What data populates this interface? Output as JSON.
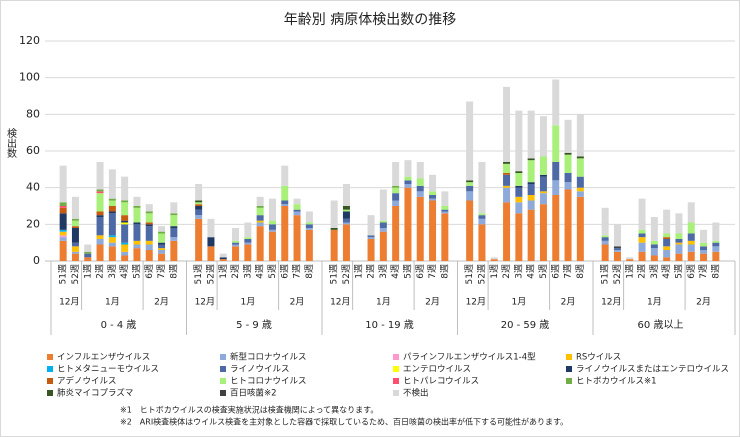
{
  "chart_data": {
    "type": "stacked_bar",
    "title": "年齢別 病原体検出数の推移",
    "y_label": "検出数",
    "ylim": [
      0,
      120
    ],
    "yticks": [
      0,
      20,
      40,
      60,
      80,
      100,
      120
    ],
    "grid": true,
    "groups": [
      {
        "label": "0 - 4 歳",
        "months": [
          {
            "label": "12月",
            "weeks": [
              "51週",
              "52週"
            ]
          },
          {
            "label": "1月",
            "weeks": [
              "1週",
              "2週",
              "3週",
              "4週",
              "5週"
            ]
          },
          {
            "label": "2月",
            "weeks": [
              "6週",
              "7週",
              "8週"
            ]
          }
        ]
      },
      {
        "label": "5 - 9 歳",
        "months": [
          {
            "label": "12月",
            "weeks": [
              "51週",
              "52週"
            ]
          },
          {
            "label": "1月",
            "weeks": [
              "1週",
              "2週",
              "3週",
              "4週",
              "5週"
            ]
          },
          {
            "label": "2月",
            "weeks": [
              "6週",
              "7週",
              "8週"
            ]
          }
        ]
      },
      {
        "label": "10 - 19 歳",
        "months": [
          {
            "label": "12月",
            "weeks": [
              "51週",
              "52週"
            ]
          },
          {
            "label": "1月",
            "weeks": [
              "1週",
              "2週",
              "3週",
              "4週",
              "5週"
            ]
          },
          {
            "label": "2月",
            "weeks": [
              "6週",
              "7週",
              "8週"
            ]
          }
        ]
      },
      {
        "label": "20 - 59 歳",
        "months": [
          {
            "label": "12月",
            "weeks": [
              "51週",
              "52週"
            ]
          },
          {
            "label": "1月",
            "weeks": [
              "1週",
              "2週",
              "3週",
              "4週",
              "5週"
            ]
          },
          {
            "label": "2月",
            "weeks": [
              "6週",
              "7週",
              "8週"
            ]
          }
        ]
      },
      {
        "label": "60 歳以上",
        "months": [
          {
            "label": "12月",
            "weeks": [
              "51週",
              "52週"
            ]
          },
          {
            "label": "1月",
            "weeks": [
              "1週",
              "2週",
              "3週",
              "4週",
              "5週"
            ]
          },
          {
            "label": "2月",
            "weeks": [
              "6週",
              "7週",
              "8週"
            ]
          }
        ]
      }
    ],
    "series": [
      {
        "name": "インフルエンザウイルス",
        "color": "#ed7d31",
        "values": [
          11,
          4,
          2,
          9,
          8,
          3,
          7,
          6,
          4,
          11,
          23,
          8,
          1,
          8,
          9,
          19,
          16,
          30,
          25,
          17,
          17,
          20,
          0,
          12,
          16,
          30,
          40,
          35,
          33,
          26,
          33,
          20,
          1,
          32,
          26,
          28,
          31,
          36,
          39,
          35,
          9,
          5,
          1,
          5,
          3,
          2,
          4,
          5,
          4,
          5
        ]
      },
      {
        "name": "新型コロナウイルス",
        "color": "#8eaadb",
        "values": [
          2,
          1,
          0,
          3,
          2,
          2,
          2,
          3,
          2,
          2,
          2,
          0,
          0,
          1,
          1,
          2,
          1,
          1,
          2,
          1,
          0,
          1,
          0,
          1,
          2,
          3,
          2,
          3,
          1,
          1,
          5,
          3,
          0,
          8,
          6,
          5,
          6,
          8,
          4,
          3,
          2,
          1,
          0,
          5,
          4,
          4,
          5,
          4,
          2,
          3
        ]
      },
      {
        "name": "パラインフルエンザウイルス1-4型",
        "color": "#ff99cc",
        "values": [
          1,
          0,
          0,
          0,
          0,
          0,
          0,
          0,
          0,
          0,
          0,
          0,
          0,
          0,
          0,
          0,
          0,
          0,
          0,
          0,
          0,
          0,
          0,
          0,
          0,
          0,
          0,
          0,
          0,
          0,
          0,
          0,
          0,
          0,
          0,
          0,
          0,
          0,
          0,
          0,
          0,
          0,
          0,
          0,
          0,
          0,
          0,
          0,
          0,
          0
        ]
      },
      {
        "name": "RSウイルス",
        "color": "#ffc000",
        "values": [
          2,
          3,
          0,
          2,
          3,
          4,
          2,
          2,
          1,
          0,
          0,
          0,
          0,
          0,
          0,
          1,
          0,
          0,
          0,
          0,
          0,
          0,
          0,
          0,
          0,
          0,
          0,
          0,
          0,
          0,
          0,
          0,
          0,
          1,
          3,
          3,
          1,
          0,
          0,
          2,
          0,
          0,
          0,
          3,
          0,
          2,
          1,
          2,
          0,
          0
        ]
      },
      {
        "name": "ヒトメタニューモウイルス",
        "color": "#00b0f0",
        "values": [
          1,
          0,
          0,
          0,
          1,
          1,
          0,
          0,
          0,
          0,
          0,
          0,
          0,
          0,
          0,
          0,
          0,
          0,
          0,
          0,
          0,
          0,
          0,
          0,
          0,
          0,
          0,
          0,
          0,
          0,
          0,
          0,
          0,
          0,
          0,
          0,
          0,
          0,
          0,
          0,
          0,
          0,
          0,
          0,
          0,
          0,
          0,
          0,
          0,
          0
        ]
      },
      {
        "name": "ライノウイルス",
        "color": "#4e6aa6",
        "values": [
          0,
          2,
          2,
          10,
          12,
          10,
          9,
          8,
          2,
          5,
          3,
          0,
          0,
          1,
          2,
          3,
          3,
          2,
          1,
          2,
          0,
          2,
          0,
          1,
          3,
          4,
          2,
          3,
          2,
          1,
          3,
          2,
          0,
          6,
          5,
          6,
          8,
          10,
          5,
          6,
          2,
          1,
          0,
          2,
          2,
          4,
          2,
          4,
          2,
          2
        ]
      },
      {
        "name": "エンテロウイルス",
        "color": "#ffff00",
        "values": [
          0,
          0,
          0,
          0,
          0,
          1,
          0,
          0,
          0,
          0,
          0,
          0,
          0,
          0,
          0,
          0,
          0,
          0,
          0,
          0,
          0,
          0,
          0,
          0,
          0,
          0,
          0,
          0,
          0,
          0,
          0,
          0,
          0,
          0,
          0,
          0,
          0,
          0,
          0,
          0,
          0,
          0,
          0,
          0,
          0,
          0,
          0,
          0,
          0,
          0
        ]
      },
      {
        "name": "ライノウイルスまたはエンテロウイルス",
        "color": "#1f3864",
        "values": [
          9,
          8,
          0,
          1,
          1,
          1,
          1,
          1,
          1,
          1,
          2,
          5,
          1,
          0,
          0,
          0,
          0,
          0,
          0,
          0,
          0,
          4,
          0,
          0,
          0,
          0,
          0,
          0,
          0,
          0,
          0,
          0,
          0,
          0,
          1,
          1,
          1,
          0,
          0,
          0,
          0,
          0,
          0,
          0,
          0,
          0,
          0,
          0,
          0,
          0
        ]
      },
      {
        "name": "アデノウイルス",
        "color": "#c55a11",
        "values": [
          3,
          1,
          0,
          2,
          3,
          3,
          0,
          1,
          0,
          0,
          1,
          0,
          0,
          0,
          0,
          0,
          0,
          0,
          0,
          0,
          0,
          0,
          0,
          0,
          0,
          0,
          0,
          0,
          0,
          0,
          0,
          0,
          0,
          1,
          0,
          0,
          0,
          0,
          0,
          0,
          0,
          0,
          0,
          0,
          0,
          1,
          0,
          0,
          0,
          0
        ]
      },
      {
        "name": "ヒトコロナウイルス",
        "color": "#a9f07a",
        "values": [
          0,
          3,
          0,
          10,
          3,
          7,
          8,
          5,
          5,
          6,
          1,
          0,
          0,
          1,
          1,
          4,
          2,
          8,
          3,
          1,
          0,
          1,
          0,
          0,
          1,
          3,
          2,
          4,
          2,
          2,
          2,
          1,
          0,
          5,
          7,
          12,
          10,
          20,
          10,
          10,
          1,
          0,
          0,
          2,
          2,
          2,
          3,
          6,
          2,
          1
        ]
      },
      {
        "name": "ヒトパレコウイルス",
        "color": "#ff4f6d",
        "values": [
          1,
          0,
          0,
          1,
          0,
          0,
          0,
          0,
          0,
          0,
          0,
          0,
          0,
          0,
          0,
          0,
          0,
          0,
          0,
          0,
          0,
          0,
          0,
          0,
          0,
          0,
          0,
          0,
          0,
          0,
          0,
          0,
          0,
          0,
          0,
          0,
          0,
          0,
          0,
          0,
          0,
          0,
          0,
          0,
          0,
          0,
          0,
          0,
          0,
          0
        ]
      },
      {
        "name": "ヒトボカウイルス※1",
        "color": "#70ad47",
        "values": [
          2,
          1,
          1,
          1,
          1,
          1,
          1,
          1,
          1,
          1,
          0,
          0,
          0,
          0,
          0,
          1,
          0,
          0,
          0,
          0,
          0,
          0,
          0,
          0,
          0,
          1,
          0,
          0,
          0,
          0,
          0,
          0,
          0,
          0,
          0,
          0,
          0,
          0,
          0,
          0,
          0,
          0,
          0,
          0,
          0,
          0,
          0,
          0,
          0,
          0
        ]
      },
      {
        "name": "肺炎マイコプラズマ",
        "color": "#375623",
        "values": [
          0,
          0,
          0,
          0,
          0,
          0,
          0,
          0,
          0,
          0,
          1,
          0,
          0,
          0,
          0,
          0,
          0,
          0,
          0,
          0,
          1,
          2,
          0,
          0,
          0,
          0,
          0,
          0,
          0,
          0,
          1,
          0,
          0,
          1,
          1,
          1,
          0,
          0,
          1,
          1,
          0,
          0,
          0,
          0,
          0,
          0,
          0,
          0,
          0,
          0
        ]
      },
      {
        "name": "百日咳菌※2",
        "color": "#404040",
        "values": [
          0,
          0,
          0,
          0,
          0,
          0,
          0,
          0,
          0,
          0,
          0,
          0,
          0,
          0,
          0,
          0,
          0,
          0,
          0,
          0,
          0,
          0,
          0,
          0,
          0,
          0,
          0,
          0,
          0,
          0,
          0,
          0,
          0,
          0,
          0,
          0,
          0,
          0,
          0,
          0,
          0,
          1,
          0,
          0,
          0,
          0,
          0,
          0,
          0,
          0
        ]
      },
      {
        "name": "不検出",
        "color": "#d9d9d9",
        "values": [
          20,
          12,
          4,
          15,
          16,
          13,
          5,
          4,
          3,
          6,
          9,
          10,
          2,
          7,
          8,
          5,
          12,
          11,
          3,
          6,
          15,
          12,
          0,
          11,
          17,
          13,
          9,
          9,
          9,
          8,
          43,
          28,
          1,
          41,
          33,
          26,
          22,
          25,
          18,
          23,
          15,
          12,
          1,
          17,
          13,
          13,
          11,
          11,
          7,
          10
        ]
      }
    ],
    "notes": [
      "※1　ヒトボカウイルスの検査実施状況は検査機関によって異なります。",
      "※2　ARI検査検体はウイルス検査を主対象とした容器で採取しているため、百日咳菌の検出率が低下する可能性があります。"
    ]
  }
}
